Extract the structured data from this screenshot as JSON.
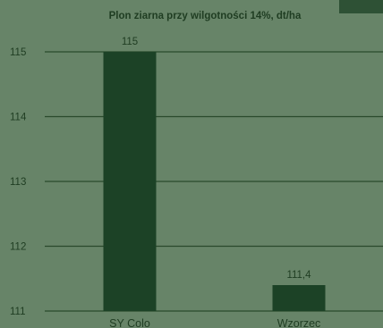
{
  "chart_data": {
    "type": "bar",
    "title": "Plon ziarna przy wilgotności 14%, dt/ha",
    "categories": [
      "SY Colo",
      "Wzorzec"
    ],
    "values": [
      115,
      111.4
    ],
    "data_labels": [
      "115",
      "111,4"
    ],
    "ylim": [
      111,
      115
    ],
    "yticks": [
      115,
      114,
      113,
      112,
      111
    ],
    "xlabel": "",
    "ylabel": "",
    "grid": true,
    "colors": {
      "bar": "#1c4226",
      "background": "#678468",
      "text": "#1f3d22",
      "grid": "#2a4a2c",
      "corner_block": "#2e5135"
    }
  }
}
